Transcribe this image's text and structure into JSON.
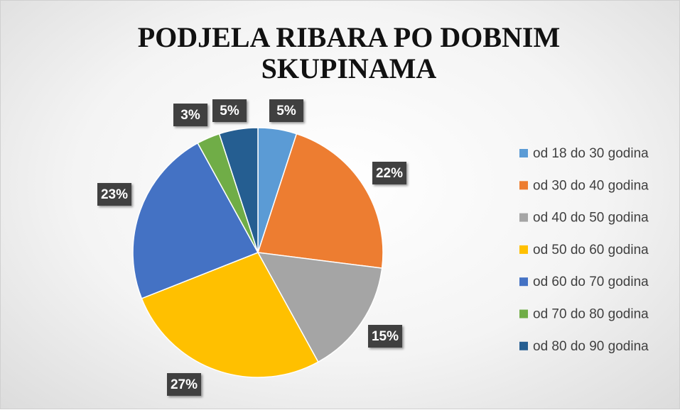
{
  "chart_data": {
    "type": "pie",
    "title": "PODJELA RIBARA PO DOBNIM SKUPINAMA",
    "categories": [
      "od 18 do 30 godina",
      "od 30 do 40 godina",
      "od 40 do 50 godina",
      "od 50 do 60 godina",
      "od 60 do 70 godina",
      "od 70 do 80 godina",
      "od 80 do 90 godina"
    ],
    "values": [
      5,
      22,
      15,
      27,
      23,
      3,
      5
    ],
    "value_labels": [
      "5%",
      "22%",
      "15%",
      "27%",
      "23%",
      "3%",
      "5%"
    ],
    "colors": [
      "#5b9bd5",
      "#ed7d31",
      "#a5a5a5",
      "#ffc000",
      "#4472c4",
      "#70ad47",
      "#255e91"
    ],
    "legend": "right"
  }
}
